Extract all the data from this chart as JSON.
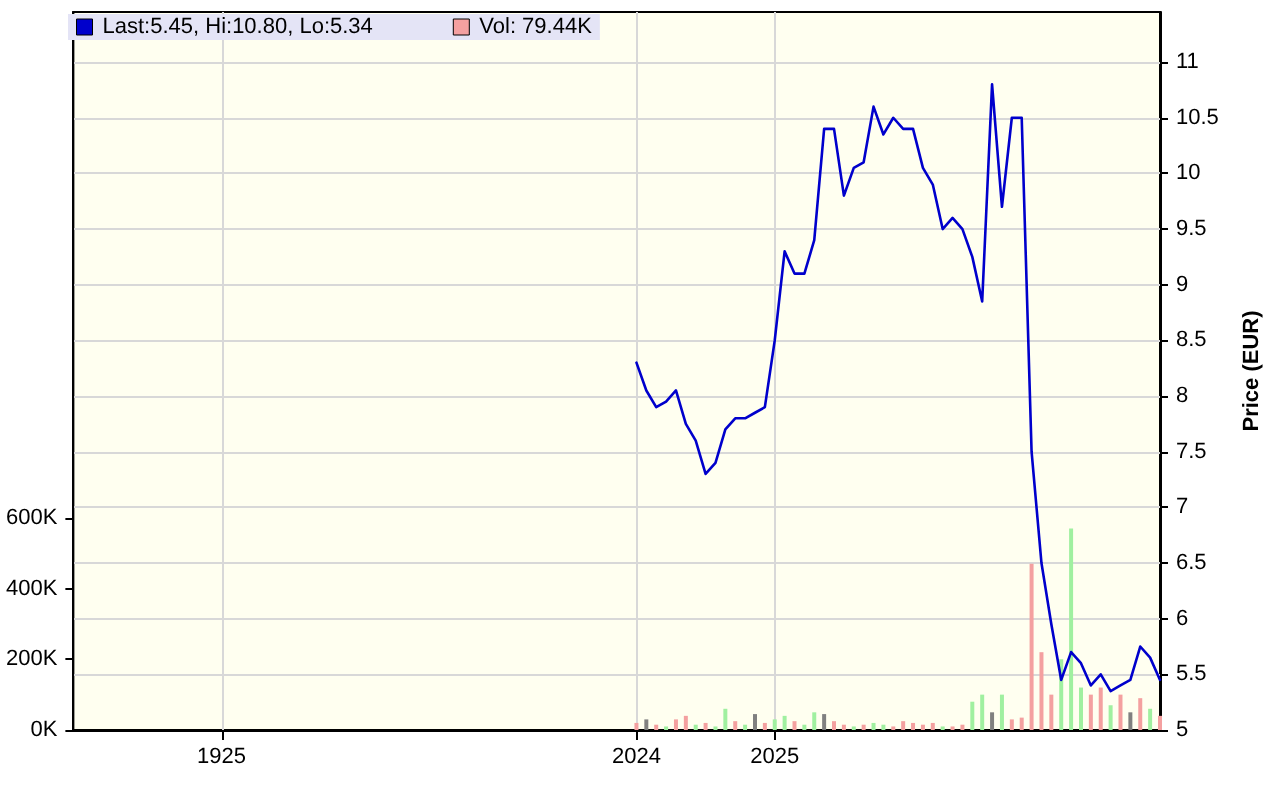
{
  "chart_data": {
    "type": "line",
    "ylabel": "Price (EUR)",
    "legend": "top left",
    "grid": true,
    "marker": "none",
    "line_style": "solid",
    "categories": [
      null,
      null,
      null,
      null,
      null,
      null,
      null,
      null,
      null,
      null,
      null,
      null,
      null,
      null,
      null,
      "1925",
      null,
      null,
      null,
      null,
      null,
      null,
      null,
      null,
      null,
      null,
      null,
      null,
      null,
      null,
      null,
      null,
      null,
      null,
      null,
      null,
      null,
      null,
      null,
      null,
      null,
      null,
      null,
      null,
      null,
      null,
      null,
      null,
      null,
      null,
      null,
      null,
      null,
      null,
      null,
      null,
      null,
      "2024",
      null,
      null,
      null,
      null,
      null,
      null,
      null,
      null,
      null,
      null,
      null,
      null,
      null,
      "2025",
      null,
      null,
      null,
      null,
      null,
      null,
      null,
      null,
      null,
      null,
      null,
      null,
      null,
      null,
      null,
      null,
      null,
      null,
      null,
      null,
      null,
      null,
      null,
      null,
      null,
      null,
      null,
      null,
      null,
      null,
      null,
      null,
      null,
      null,
      null,
      null,
      null,
      null,
      null
    ],
    "ylim": [
      5,
      11.45
    ],
    "yticks": [
      5,
      5.5,
      6,
      6.5,
      7,
      7.5,
      8,
      8.5,
      9,
      9.5,
      10,
      10.5,
      11
    ],
    "y2lim": [
      0,
      2030000
    ],
    "y2ticks": [
      {
        "value": 0,
        "label": "0K"
      },
      {
        "value": 200000,
        "label": "200K"
      },
      {
        "value": 400000,
        "label": "400K"
      },
      {
        "value": 600000,
        "label": "600K"
      }
    ],
    "series": [
      {
        "name": "Last:5.45, Hi:10.80, Lo:5.34",
        "color": "#0000cc",
        "values": [
          null,
          null,
          null,
          null,
          null,
          null,
          null,
          null,
          null,
          null,
          null,
          null,
          null,
          null,
          null,
          null,
          null,
          null,
          null,
          null,
          null,
          null,
          null,
          null,
          null,
          null,
          null,
          null,
          null,
          null,
          null,
          null,
          null,
          null,
          null,
          null,
          null,
          null,
          null,
          null,
          null,
          null,
          null,
          null,
          null,
          null,
          null,
          null,
          null,
          null,
          null,
          null,
          null,
          null,
          null,
          null,
          null,
          8.3,
          8.05,
          7.9,
          7.95,
          8.05,
          7.75,
          7.6,
          7.3,
          7.4,
          7.7,
          7.8,
          7.8,
          7.85,
          7.9,
          8.5,
          9.3,
          9.1,
          9.1,
          9.4,
          10.4,
          10.4,
          9.8,
          10.05,
          10.1,
          10.6,
          10.35,
          10.5,
          10.4,
          10.4,
          10.05,
          9.9,
          9.5,
          9.6,
          9.5,
          9.25,
          8.85,
          10.8,
          9.7,
          10.5,
          10.5,
          7.5,
          6.5,
          5.95,
          5.45,
          5.7,
          5.6,
          5.4,
          5.5,
          5.35,
          5.4,
          5.45,
          5.75,
          5.65,
          5.45
        ]
      },
      {
        "name": "Vol: 79.44K",
        "type": "bar",
        "axis": "y2",
        "color": "#f4a0a0",
        "values": [
          null,
          null,
          null,
          null,
          null,
          null,
          null,
          null,
          null,
          null,
          null,
          null,
          null,
          null,
          null,
          null,
          null,
          null,
          null,
          null,
          null,
          null,
          null,
          null,
          null,
          null,
          null,
          null,
          null,
          null,
          null,
          null,
          null,
          null,
          null,
          null,
          null,
          null,
          null,
          null,
          null,
          null,
          null,
          null,
          null,
          null,
          null,
          null,
          null,
          null,
          null,
          null,
          null,
          null,
          null,
          null,
          null,
          20000,
          30000,
          15000,
          10000,
          30000,
          40000,
          15000,
          20000,
          10000,
          60000,
          25000,
          15000,
          45000,
          20000,
          30000,
          40000,
          25000,
          15000,
          50000,
          45000,
          25000,
          15000,
          10000,
          15000,
          20000,
          15000,
          10000,
          25000,
          20000,
          15000,
          20000,
          10000,
          10000,
          15000,
          80000,
          100000,
          50000,
          100000,
          30000,
          35000,
          470000,
          220000,
          100000,
          200000,
          570000,
          120000,
          100000,
          120000,
          70000,
          100000,
          50000,
          90000,
          60000,
          40000
        ],
        "colors": [
          null,
          null,
          null,
          null,
          null,
          null,
          null,
          null,
          null,
          null,
          null,
          null,
          null,
          null,
          null,
          null,
          null,
          null,
          null,
          null,
          null,
          null,
          null,
          null,
          null,
          null,
          null,
          null,
          null,
          null,
          null,
          null,
          null,
          null,
          null,
          null,
          null,
          null,
          null,
          null,
          null,
          null,
          null,
          null,
          null,
          null,
          null,
          null,
          null,
          null,
          null,
          null,
          null,
          null,
          null,
          null,
          null,
          "#f4a0a0",
          "#808080",
          "#f4a0a0",
          "#a0f0a0",
          "#f4a0a0",
          "#f4a0a0",
          "#a0f0a0",
          "#f4a0a0",
          "#a0f0a0",
          "#a0f0a0",
          "#f4a0a0",
          "#a0f0a0",
          "#808080",
          "#f4a0a0",
          "#a0f0a0",
          "#a0f0a0",
          "#f4a0a0",
          "#a0f0a0",
          "#a0f0a0",
          "#808080",
          "#f4a0a0",
          "#f4a0a0",
          "#a0f0a0",
          "#f4a0a0",
          "#a0f0a0",
          "#a0f0a0",
          "#f4a0a0",
          "#f4a0a0",
          "#f4a0a0",
          "#f4a0a0",
          "#f4a0a0",
          "#a0f0a0",
          "#f4a0a0",
          "#f4a0a0",
          "#a0f0a0",
          "#a0f0a0",
          "#808080",
          "#a0f0a0",
          "#f4a0a0",
          "#f4a0a0",
          "#f4a0a0",
          "#f4a0a0",
          "#f4a0a0",
          "#a0f0a0",
          "#a0f0a0",
          "#a0f0a0",
          "#f4a0a0",
          "#f4a0a0",
          "#a0f0a0",
          "#f4a0a0",
          "#808080",
          "#f4a0a0",
          "#a0f0a0",
          "#f4a0a0"
        ]
      }
    ]
  }
}
